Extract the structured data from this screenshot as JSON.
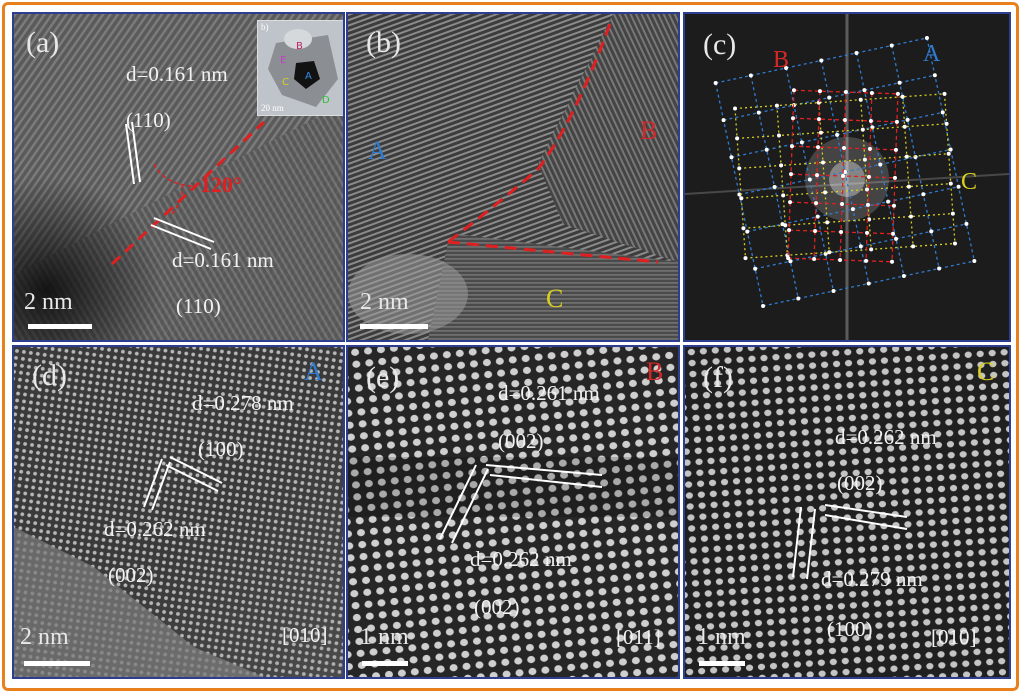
{
  "panels": {
    "a": {
      "label": "(a)",
      "d_upper": "d=0.161 nm",
      "plane_upper": "(110)",
      "angle": "120°",
      "d_lower": "d=0.161 nm",
      "plane_lower": "(110)",
      "scale": "2 nm",
      "inset": {
        "panel_label": "b)",
        "scale": "20 nm",
        "markers": [
          "B",
          "E",
          "C",
          "A",
          "D"
        ]
      }
    },
    "b": {
      "label": "(b)",
      "zone_a": "A",
      "zone_b": "B",
      "zone_c": "C",
      "scale": "2 nm"
    },
    "c": {
      "label": "(c)",
      "zone_a": "A",
      "zone_b": "B",
      "zone_c": "C"
    },
    "d": {
      "label": "(d)",
      "zone": "A",
      "d_upper": "d=0.278 nm",
      "plane_upper": "(100)",
      "d_lower": "d=0.262 nm",
      "plane_lower": "(002)",
      "scale": "2 nm",
      "axis": "[010]"
    },
    "e": {
      "label": "(e)",
      "zone": "B",
      "d_upper": "d=0.261 nm",
      "plane_upper": "(002)",
      "d_lower": "d=0.262 nm",
      "plane_lower": "(002)",
      "scale": "1 nm",
      "axis": "[011]"
    },
    "f": {
      "label": "(f)",
      "zone": "C",
      "d_upper": "d=0.262 nm",
      "plane_upper": "(002)",
      "d_lower": "d=0.279 nm",
      "plane_lower": "(100)",
      "scale": "1 nm",
      "axis": "[010]"
    }
  },
  "colors": {
    "frame": "#e8801e",
    "panel_border": "#2c3e8f",
    "zone_a": "#2f7bd0",
    "zone_b": "#d42828",
    "zone_c": "#d8d020",
    "boundary": "#e02020"
  }
}
